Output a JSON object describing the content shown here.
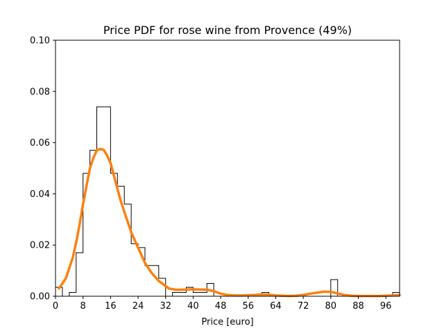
{
  "chart_data": {
    "type": "histogram",
    "title": "Price PDF for rose wine from Provence (49%)",
    "xlabel": "Price [euro]",
    "ylabel": "",
    "xlim": [
      0,
      100
    ],
    "ylim": [
      0,
      0.1
    ],
    "grid": false,
    "x_ticks": [
      0,
      8,
      16,
      24,
      32,
      40,
      48,
      56,
      64,
      72,
      80,
      88,
      96
    ],
    "y_ticks": [
      0.0,
      0.02,
      0.04,
      0.06,
      0.08,
      0.1
    ],
    "x_tick_labels": [
      "0",
      "8",
      "16",
      "24",
      "32",
      "40",
      "48",
      "56",
      "64",
      "72",
      "80",
      "88",
      "96"
    ],
    "y_tick_labels": [
      "0.00",
      "0.02",
      "0.04",
      "0.06",
      "0.08",
      "0.10"
    ],
    "histogram": {
      "color": "#000000",
      "bin_edges": [
        0,
        2,
        4,
        6,
        8,
        10,
        12,
        14,
        16,
        18,
        20,
        22,
        24,
        26,
        28,
        30,
        32,
        34,
        36,
        38,
        40,
        42,
        44,
        46,
        48,
        50,
        52,
        54,
        56,
        58,
        60,
        62,
        64,
        66,
        68,
        70,
        72,
        74,
        76,
        78,
        80,
        82,
        84,
        86,
        88,
        90,
        92,
        94,
        96,
        98,
        100
      ],
      "densities": [
        0.0035,
        0.0,
        0.0015,
        0.017,
        0.048,
        0.057,
        0.074,
        0.074,
        0.048,
        0.043,
        0.036,
        0.0205,
        0.019,
        0.012,
        0.012,
        0.007,
        0.0,
        0.0015,
        0.0015,
        0.0035,
        0.0015,
        0.0015,
        0.005,
        0.0,
        0.0,
        0.0,
        0.0,
        0.0,
        0.0,
        0.0,
        0.0015,
        0.0,
        0.0,
        0.0,
        0.0,
        0.0,
        0.0,
        0.0,
        0.0,
        0.0,
        0.0065,
        0.0,
        0.0,
        0.0,
        0.0,
        0.0,
        0.0,
        0.0,
        0.0,
        0.0015
      ]
    },
    "kde": {
      "color": "#ff7f0e",
      "x": [
        1,
        2,
        3,
        4,
        5,
        6,
        7,
        8,
        9,
        10,
        11,
        12,
        13,
        14,
        15,
        16,
        17,
        18,
        19,
        20,
        21,
        22,
        23,
        24,
        25,
        26,
        27,
        28,
        29,
        30,
        31,
        32,
        33,
        34,
        35,
        36,
        38,
        40,
        42,
        44,
        46,
        48,
        50,
        52,
        54,
        56,
        58,
        60,
        62,
        64,
        66,
        68,
        70,
        72,
        74,
        76,
        78,
        80,
        82,
        84,
        86,
        88,
        90,
        92,
        94,
        96,
        98,
        100
      ],
      "y": [
        0.003,
        0.005,
        0.007,
        0.011,
        0.015,
        0.021,
        0.028,
        0.036,
        0.043,
        0.05,
        0.054,
        0.057,
        0.0575,
        0.0572,
        0.055,
        0.052,
        0.047,
        0.042,
        0.037,
        0.033,
        0.029,
        0.025,
        0.022,
        0.019,
        0.016,
        0.013,
        0.011,
        0.009,
        0.0075,
        0.006,
        0.005,
        0.004,
        0.003,
        0.0028,
        0.0025,
        0.0025,
        0.0026,
        0.0027,
        0.0026,
        0.0025,
        0.002,
        0.001,
        0.0005,
        0.0003,
        0.0003,
        0.0004,
        0.0005,
        0.0007,
        0.0006,
        0.0003,
        0.0002,
        0.0001,
        0.0002,
        0.0005,
        0.001,
        0.0014,
        0.0018,
        0.0017,
        0.0011,
        0.0005,
        0.0002,
        0.0001,
        0.0001,
        0.0001,
        0.0001,
        0.0002,
        0.0003,
        0.0005
      ]
    }
  }
}
